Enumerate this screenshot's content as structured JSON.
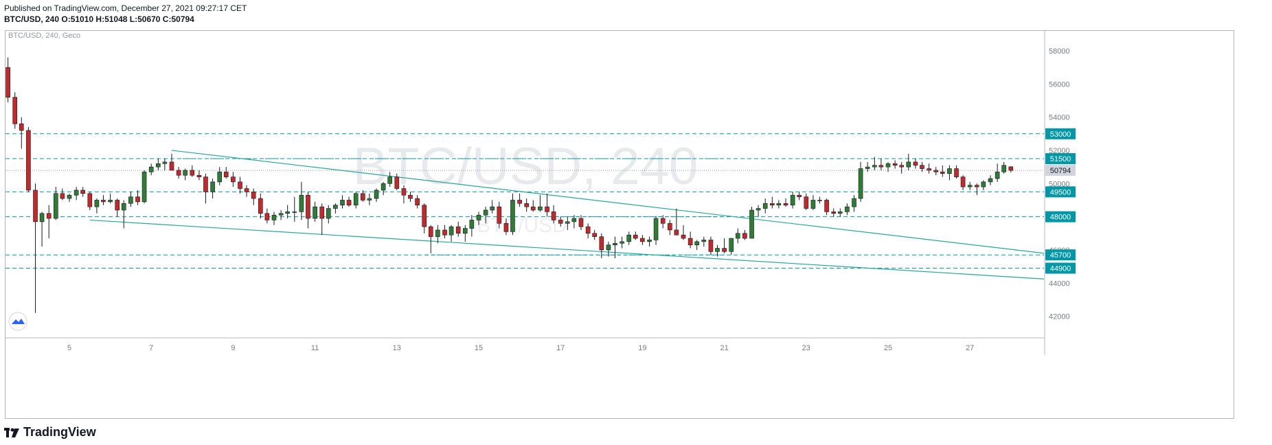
{
  "header": {
    "published": "Published on TradingView.com, December 27, 2021 09:27:17 CET",
    "symbol_line": "BTC/USD, 240",
    "ohlc": "O:51010 H:51048 L:50670 C:50794"
  },
  "chart": {
    "legend": "BTC/USD, 240, Geco",
    "watermark_main": "BTC/USD, 240",
    "watermark_sub": "BTC/USD"
  },
  "footer": {
    "brand": "TradingView"
  },
  "colors": {
    "up": "#26a69a",
    "up_candle": "#2e7d32",
    "down": "#c62828",
    "level": "#0097a7",
    "trend": "#26a69a"
  },
  "chart_data": {
    "type": "candlestick",
    "title": "BTC/USD, 240",
    "x_ticks": [
      "5",
      "7",
      "9",
      "11",
      "13",
      "15",
      "17",
      "19",
      "21",
      "23",
      "25",
      "27"
    ],
    "y_ticks": [
      42000,
      44000,
      46000,
      48000,
      50000,
      52000,
      54000,
      56000,
      58000
    ],
    "ylim": [
      40700,
      59200
    ],
    "last_price": 50794,
    "price_levels": [
      53000,
      51500,
      49500,
      48000,
      45700,
      44900
    ],
    "trend_lines": [
      {
        "from": {
          "day": 7.5,
          "price": 52000
        },
        "to": {
          "day": 29,
          "price": 45800
        }
      },
      {
        "from": {
          "day": 5.5,
          "price": 47800
        },
        "to": {
          "day": 29,
          "price": 44250
        }
      }
    ],
    "support_segments": [
      {
        "from_day": 7.5,
        "to_day": 21,
        "price": 51500
      },
      {
        "from_day": 13.7,
        "to_day": 21,
        "price": 45700
      },
      {
        "from_day": 17,
        "to_day": 21,
        "price": 48000
      }
    ],
    "candles_4h_ohlc": [
      [
        3.5,
        57000,
        57600,
        54900,
        55200
      ],
      [
        3.67,
        55200,
        55500,
        53300,
        53600
      ],
      [
        3.83,
        53600,
        54000,
        52100,
        53200
      ],
      [
        4.0,
        53200,
        53400,
        49500,
        49600
      ],
      [
        4.17,
        49600,
        50000,
        42200,
        47700
      ],
      [
        4.33,
        47700,
        48300,
        46200,
        48200
      ],
      [
        4.5,
        48200,
        48700,
        46700,
        47900
      ],
      [
        4.67,
        47900,
        49800,
        47800,
        49400
      ],
      [
        4.83,
        49400,
        49700,
        49000,
        49100
      ],
      [
        5.0,
        49100,
        49400,
        48900,
        49300
      ],
      [
        5.17,
        49300,
        49800,
        49000,
        49600
      ],
      [
        5.33,
        49600,
        49800,
        49200,
        49400
      ],
      [
        5.5,
        49400,
        49500,
        48400,
        48600
      ],
      [
        5.67,
        48600,
        49100,
        48200,
        49000
      ],
      [
        5.83,
        49000,
        49300,
        48700,
        48900
      ],
      [
        6.0,
        48900,
        49400,
        48800,
        49000
      ],
      [
        6.17,
        49000,
        49100,
        48000,
        48400
      ],
      [
        6.33,
        48400,
        49000,
        47300,
        48800
      ],
      [
        6.5,
        48800,
        49500,
        48600,
        49200
      ],
      [
        6.67,
        49200,
        49600,
        48700,
        48900
      ],
      [
        6.83,
        48900,
        50800,
        48800,
        50700
      ],
      [
        7.0,
        50700,
        51200,
        50500,
        51000
      ],
      [
        7.17,
        51000,
        51500,
        50800,
        51200
      ],
      [
        7.33,
        51200,
        51500,
        50800,
        51300
      ],
      [
        7.5,
        51300,
        51800,
        51000,
        50800
      ],
      [
        7.67,
        50800,
        51000,
        50300,
        50500
      ],
      [
        7.83,
        50500,
        50900,
        50200,
        50800
      ],
      [
        8.0,
        50800,
        51100,
        50400,
        50500
      ],
      [
        8.17,
        50500,
        50800,
        50200,
        50400
      ],
      [
        8.33,
        50400,
        50600,
        48800,
        49500
      ],
      [
        8.5,
        49500,
        50300,
        49100,
        50100
      ],
      [
        8.67,
        50100,
        51000,
        49900,
        50700
      ],
      [
        8.83,
        50700,
        51000,
        50300,
        50400
      ],
      [
        9.0,
        50400,
        50700,
        49800,
        50100
      ],
      [
        9.17,
        50100,
        50400,
        49400,
        49700
      ],
      [
        9.33,
        49700,
        49900,
        49200,
        49500
      ],
      [
        9.5,
        49500,
        49700,
        48700,
        49100
      ],
      [
        9.67,
        49100,
        49400,
        47900,
        48200
      ],
      [
        9.83,
        48200,
        48500,
        47600,
        47800
      ],
      [
        10.0,
        47800,
        48300,
        47500,
        48100
      ],
      [
        10.17,
        48100,
        48400,
        47800,
        48200
      ],
      [
        10.33,
        48200,
        48700,
        47900,
        48300
      ],
      [
        10.5,
        48300,
        49200,
        47700,
        48300
      ],
      [
        10.67,
        48300,
        50100,
        47800,
        49300
      ],
      [
        10.83,
        49300,
        49500,
        47300,
        47900
      ],
      [
        11.0,
        47900,
        48900,
        47700,
        48600
      ],
      [
        11.17,
        48600,
        48800,
        46900,
        47900
      ],
      [
        11.33,
        47900,
        48700,
        47600,
        48500
      ],
      [
        11.5,
        48500,
        48800,
        48200,
        48700
      ],
      [
        11.67,
        48700,
        49300,
        48500,
        49000
      ],
      [
        11.83,
        49000,
        49200,
        48600,
        48700
      ],
      [
        12.0,
        48700,
        49500,
        48500,
        49400
      ],
      [
        12.17,
        49400,
        49600,
        48900,
        49000
      ],
      [
        12.33,
        49000,
        49400,
        48700,
        49100
      ],
      [
        12.5,
        49100,
        49700,
        48900,
        49600
      ],
      [
        12.67,
        49600,
        50100,
        49300,
        50000
      ],
      [
        12.83,
        50000,
        50700,
        49800,
        50400
      ],
      [
        13.0,
        50400,
        50600,
        49600,
        49700
      ],
      [
        13.17,
        49700,
        49900,
        48800,
        49300
      ],
      [
        13.33,
        49300,
        49500,
        48900,
        49100
      ],
      [
        13.5,
        49100,
        49300,
        48500,
        48700
      ],
      [
        13.67,
        48700,
        48800,
        47000,
        47400
      ],
      [
        13.83,
        47400,
        47500,
        45800,
        46800
      ],
      [
        14.0,
        46800,
        47500,
        46400,
        47200
      ],
      [
        14.17,
        47200,
        47500,
        46700,
        46900
      ],
      [
        14.33,
        46900,
        47500,
        46500,
        47400
      ],
      [
        14.5,
        47400,
        47700,
        46800,
        47000
      ],
      [
        14.67,
        47000,
        47500,
        46500,
        47300
      ],
      [
        14.83,
        47300,
        48100,
        46800,
        47800
      ],
      [
        15.0,
        47800,
        48300,
        47500,
        48100
      ],
      [
        15.17,
        48100,
        48600,
        47600,
        48400
      ],
      [
        15.33,
        48400,
        49000,
        48200,
        48600
      ],
      [
        15.5,
        48600,
        48900,
        47300,
        47600
      ],
      [
        15.67,
        47600,
        47900,
        46900,
        47100
      ],
      [
        15.83,
        47100,
        49400,
        46900,
        49000
      ],
      [
        16.0,
        49000,
        49400,
        48600,
        48800
      ],
      [
        16.17,
        48800,
        49100,
        48300,
        48600
      ],
      [
        16.33,
        48600,
        49000,
        48300,
        48400
      ],
      [
        16.5,
        48400,
        49300,
        48300,
        48600
      ],
      [
        16.67,
        48600,
        49400,
        48000,
        48300
      ],
      [
        16.83,
        48300,
        48700,
        47600,
        47800
      ],
      [
        17.0,
        47800,
        48000,
        47400,
        47600
      ],
      [
        17.17,
        47600,
        48000,
        47200,
        47700
      ],
      [
        17.33,
        47700,
        48100,
        47300,
        47900
      ],
      [
        17.5,
        47900,
        48100,
        47200,
        47400
      ],
      [
        17.67,
        47400,
        47600,
        46700,
        47000
      ],
      [
        17.83,
        47000,
        47200,
        46600,
        46800
      ],
      [
        18.0,
        46800,
        47000,
        45500,
        46000
      ],
      [
        18.17,
        46000,
        46500,
        45600,
        46300
      ],
      [
        18.33,
        46300,
        46800,
        45500,
        46400
      ],
      [
        18.5,
        46400,
        46800,
        46100,
        46500
      ],
      [
        18.67,
        46500,
        47100,
        46300,
        46900
      ],
      [
        18.83,
        46900,
        47100,
        46600,
        46700
      ],
      [
        19.0,
        46700,
        46900,
        46300,
        46500
      ],
      [
        19.17,
        46500,
        46800,
        46200,
        46600
      ],
      [
        19.33,
        46600,
        48000,
        46300,
        47900
      ],
      [
        19.5,
        47900,
        48100,
        47300,
        47600
      ],
      [
        19.67,
        47600,
        47800,
        46900,
        47200
      ],
      [
        19.83,
        47200,
        48500,
        46900,
        46900
      ],
      [
        20.0,
        46900,
        47500,
        46600,
        46700
      ],
      [
        20.17,
        46700,
        47100,
        46100,
        46300
      ],
      [
        20.33,
        46300,
        46600,
        46000,
        46500
      ],
      [
        20.5,
        46500,
        46800,
        46200,
        46600
      ],
      [
        20.67,
        46600,
        46800,
        45700,
        45900
      ],
      [
        20.83,
        45900,
        46300,
        45600,
        46100
      ],
      [
        21.0,
        46100,
        46700,
        45800,
        45900
      ],
      [
        21.17,
        45900,
        46700,
        45700,
        46700
      ],
      [
        21.33,
        46700,
        47300,
        46400,
        47000
      ],
      [
        21.5,
        47000,
        47200,
        46600,
        46700
      ],
      [
        21.67,
        46700,
        48600,
        46700,
        48400
      ],
      [
        21.83,
        48400,
        48700,
        48000,
        48500
      ],
      [
        22.0,
        48500,
        49100,
        48200,
        48800
      ],
      [
        22.17,
        48800,
        49200,
        48500,
        48700
      ],
      [
        22.33,
        48700,
        49000,
        48500,
        48800
      ],
      [
        22.5,
        48800,
        49100,
        48600,
        48700
      ],
      [
        22.67,
        48700,
        49500,
        48500,
        49300
      ],
      [
        22.83,
        49300,
        49500,
        49000,
        49200
      ],
      [
        23.0,
        49200,
        49400,
        48400,
        48500
      ],
      [
        23.17,
        48500,
        49300,
        48400,
        49000
      ],
      [
        23.33,
        49000,
        49200,
        48800,
        49000
      ],
      [
        23.5,
        49000,
        49100,
        48100,
        48300
      ],
      [
        23.67,
        48300,
        48500,
        48000,
        48200
      ],
      [
        23.83,
        48200,
        48500,
        48000,
        48300
      ],
      [
        24.0,
        48300,
        48800,
        48100,
        48600
      ],
      [
        24.17,
        48600,
        49300,
        48300,
        49100
      ],
      [
        24.33,
        49100,
        51300,
        48900,
        50900
      ],
      [
        24.5,
        50900,
        51300,
        50700,
        51000
      ],
      [
        24.67,
        51000,
        51600,
        50800,
        51100
      ],
      [
        24.83,
        51100,
        51500,
        50800,
        51000
      ],
      [
        25.0,
        51000,
        51300,
        50700,
        51200
      ],
      [
        25.17,
        51200,
        51400,
        50900,
        51100
      ],
      [
        25.33,
        51100,
        51300,
        50600,
        51000
      ],
      [
        25.5,
        51000,
        51800,
        50800,
        51300
      ],
      [
        25.67,
        51300,
        51500,
        50900,
        51100
      ],
      [
        25.83,
        51100,
        51300,
        50700,
        50900
      ],
      [
        26.0,
        50900,
        51200,
        50600,
        50800
      ],
      [
        26.17,
        50800,
        51000,
        50500,
        50700
      ],
      [
        26.33,
        50700,
        51100,
        50400,
        50600
      ],
      [
        26.5,
        50600,
        51100,
        50200,
        50900
      ],
      [
        26.67,
        50900,
        51100,
        50300,
        50400
      ],
      [
        26.83,
        50400,
        50500,
        49600,
        49800
      ],
      [
        27.0,
        49800,
        50100,
        49600,
        49900
      ],
      [
        27.17,
        49900,
        50000,
        49300,
        49800
      ],
      [
        27.33,
        49800,
        50200,
        49600,
        50100
      ],
      [
        27.5,
        50100,
        50500,
        49900,
        50300
      ],
      [
        27.67,
        50300,
        51200,
        50100,
        50700
      ],
      [
        27.83,
        50700,
        51300,
        50600,
        51100
      ],
      [
        28.0,
        51010,
        51048,
        50670,
        50794
      ]
    ]
  }
}
